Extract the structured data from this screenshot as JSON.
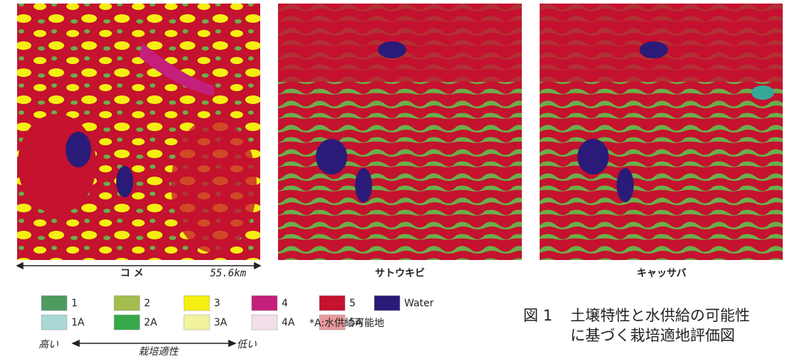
{
  "figures": [
    {
      "label": "コ メ",
      "scale": "55.6km"
    },
    {
      "label": "サトウキビ"
    },
    {
      "label": "キャッサバ"
    }
  ],
  "legend": {
    "items": [
      {
        "label": "1",
        "color": "#4f9a5f"
      },
      {
        "label": "2",
        "color": "#a3bd4e"
      },
      {
        "label": "3",
        "color": "#f4ef10"
      },
      {
        "label": "4",
        "color": "#c41f7b"
      },
      {
        "label": "5",
        "color": "#c4122f"
      },
      {
        "label": "Water",
        "color": "#2b1b78"
      },
      {
        "label": "1A",
        "color": "#a9d8d6"
      },
      {
        "label": "2A",
        "color": "#36a84a"
      },
      {
        "label": "3A",
        "color": "#f2f39c"
      },
      {
        "label": "4A",
        "color": "#f2dfe9"
      },
      {
        "label": "5A",
        "color": "#e99a9c"
      }
    ],
    "note": "*A:水供給可能地",
    "axis": {
      "high": "高い",
      "title": "栽培適性",
      "low": "低い"
    }
  },
  "caption": {
    "number": "図 1",
    "lines": [
      "土壌特性と水供給の可能性",
      "に基づく栽培適地評価図"
    ]
  }
}
